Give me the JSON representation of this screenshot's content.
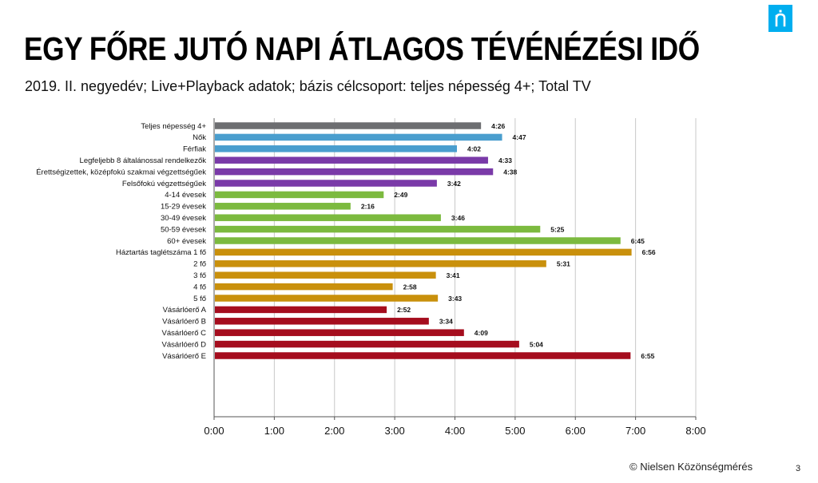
{
  "header": {
    "title": "EGY FŐRE JUTÓ NAPI ÁTLAGOS TÉVÉNÉZÉSI IDŐ",
    "subtitle": "2019. II. negyedév; Live+Playback adatok; bázis célcsoport: teljes népesség 4+; Total TV"
  },
  "logo": {
    "icon": "nielsen-logo-icon",
    "color": "#00aeef"
  },
  "footer": {
    "copyright": "© Nielsen Közönségmérés",
    "page": "3"
  },
  "chart_data": {
    "type": "bar",
    "orientation": "horizontal",
    "x_unit": "hours:minutes",
    "xlim": [
      "0:00",
      "8:00"
    ],
    "x_ticks": [
      "0:00",
      "1:00",
      "2:00",
      "3:00",
      "4:00",
      "5:00",
      "6:00",
      "7:00",
      "8:00"
    ],
    "grid": true,
    "groups": [
      {
        "color": "#6d6e71",
        "items": [
          {
            "label": "Teljes népesség 4+",
            "value": "4:26"
          }
        ]
      },
      {
        "color": "#4a9ece",
        "items": [
          {
            "label": "Nők",
            "value": "4:47"
          },
          {
            "label": "Férfiak",
            "value": "4:02"
          }
        ]
      },
      {
        "color": "#7a3aa8",
        "items": [
          {
            "label": "Legfeljebb 8 általánossal rendelkezők",
            "value": "4:33"
          },
          {
            "label": "Érettségizettek, középfokú szakmai végzettségűek",
            "value": "4:38"
          },
          {
            "label": "Felsőfokú végzettségűek",
            "value": "3:42"
          }
        ]
      },
      {
        "color": "#7cba3f",
        "items": [
          {
            "label": "4-14 évesek",
            "value": "2:49"
          },
          {
            "label": "15-29 évesek",
            "value": "2:16"
          },
          {
            "label": "30-49 évesek",
            "value": "3:46"
          },
          {
            "label": "50-59 évesek",
            "value": "5:25"
          },
          {
            "label": "60+ évesek",
            "value": "6:45"
          }
        ]
      },
      {
        "color": "#c9900c",
        "items": [
          {
            "label": "Háztartás taglétszáma 1 fő",
            "value": "6:56"
          },
          {
            "label": "2 fő",
            "value": "5:31"
          },
          {
            "label": "3 fő",
            "value": "3:41"
          },
          {
            "label": "4 fő",
            "value": "2:58"
          },
          {
            "label": "5 fő",
            "value": "3:43"
          }
        ]
      },
      {
        "color": "#a50d1e",
        "items": [
          {
            "label": "Vásárlóerő A",
            "value": "2:52"
          },
          {
            "label": "Vásárlóerő B",
            "value": "3:34"
          },
          {
            "label": "Vásárlóerő C",
            "value": "4:09"
          },
          {
            "label": "Vásárlóerő D",
            "value": "5:04"
          },
          {
            "label": "Vásárlóerő E",
            "value": "6:55"
          }
        ]
      }
    ]
  }
}
